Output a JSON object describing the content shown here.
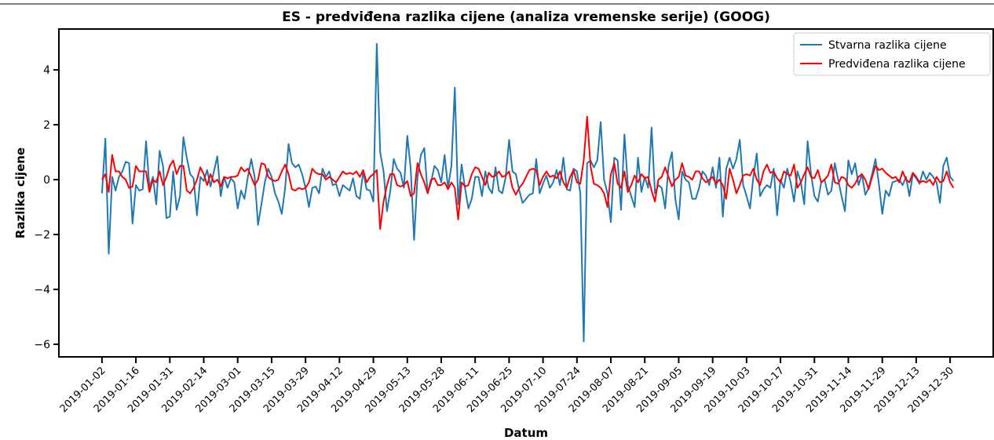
{
  "chart_data": {
    "type": "line",
    "title": "ES - predviđena razlika cijene (analiza vremenske serije) (GOOG)",
    "xlabel": "Datum",
    "ylabel": "Razlika cijene",
    "categories": [
      "2019-01-02",
      null,
      null,
      null,
      null,
      null,
      null,
      null,
      null,
      null,
      "2019-01-16",
      null,
      null,
      null,
      null,
      null,
      null,
      null,
      null,
      null,
      "2019-01-31",
      null,
      null,
      null,
      null,
      null,
      null,
      null,
      null,
      null,
      "2019-02-14",
      null,
      null,
      null,
      null,
      null,
      null,
      null,
      null,
      null,
      "2019-03-01",
      null,
      null,
      null,
      null,
      null,
      null,
      null,
      null,
      null,
      "2019-03-15",
      null,
      null,
      null,
      null,
      null,
      null,
      null,
      null,
      null,
      "2019-03-29",
      null,
      null,
      null,
      null,
      null,
      null,
      null,
      null,
      null,
      "2019-04-12",
      null,
      null,
      null,
      null,
      null,
      null,
      null,
      null,
      null,
      "2019-04-29",
      null,
      null,
      null,
      null,
      null,
      null,
      null,
      null,
      null,
      "2019-05-13",
      null,
      null,
      null,
      null,
      null,
      null,
      null,
      null,
      null,
      "2019-05-28",
      null,
      null,
      null,
      null,
      null,
      null,
      null,
      null,
      null,
      "2019-06-11",
      null,
      null,
      null,
      null,
      null,
      null,
      null,
      null,
      null,
      "2019-06-25",
      null,
      null,
      null,
      null,
      null,
      null,
      null,
      null,
      null,
      "2019-07-10",
      null,
      null,
      null,
      null,
      null,
      null,
      null,
      null,
      null,
      "2019-07-24",
      null,
      null,
      null,
      null,
      null,
      null,
      null,
      null,
      null,
      "2019-08-07",
      null,
      null,
      null,
      null,
      null,
      null,
      null,
      null,
      null,
      "2019-08-21",
      null,
      null,
      null,
      null,
      null,
      null,
      null,
      null,
      null,
      "2019-09-05",
      null,
      null,
      null,
      null,
      null,
      null,
      null,
      null,
      null,
      "2019-09-19",
      null,
      null,
      null,
      null,
      null,
      null,
      null,
      null,
      null,
      "2019-10-03",
      null,
      null,
      null,
      null,
      null,
      null,
      null,
      null,
      null,
      "2019-10-17",
      null,
      null,
      null,
      null,
      null,
      null,
      null,
      null,
      null,
      "2019-10-31",
      null,
      null,
      null,
      null,
      null,
      null,
      null,
      null,
      null,
      "2019-11-14",
      null,
      null,
      null,
      null,
      null,
      null,
      null,
      null,
      null,
      "2019-11-29",
      null,
      null,
      null,
      null,
      null,
      null,
      null,
      null,
      null,
      "2019-12-13",
      null,
      null,
      null,
      null,
      null,
      null,
      null,
      null,
      null,
      "2019-12-30",
      null
    ],
    "series": [
      {
        "name": "Stvarna razlika cijene",
        "color": "#1f77b4",
        "values": [
          -0.5,
          1.5,
          -2.7,
          0.1,
          -0.4,
          0.1,
          0.3,
          0.65,
          0.6,
          -1.6,
          -0.2,
          -0.4,
          -0.35,
          1.4,
          -0.3,
          0.1,
          -0.9,
          1.05,
          0.5,
          -1.4,
          -1.35,
          0.3,
          -1.1,
          -0.6,
          1.55,
          0.8,
          0.2,
          0.05,
          -1.3,
          0.1,
          -0.05,
          0.35,
          -0.25,
          0.3,
          0.85,
          -0.6,
          0.1,
          -0.3,
          0.05,
          -0.1,
          -1.05,
          -0.4,
          -0.7,
          0.1,
          0.75,
          0.1,
          -1.65,
          -0.9,
          -0.1,
          0.4,
          0.1,
          -0.5,
          -0.8,
          -1.25,
          -0.3,
          1.3,
          0.6,
          0.45,
          0.55,
          0.2,
          -0.3,
          -1.0,
          -0.3,
          -0.25,
          -0.5,
          0.4,
          0.1,
          0.3,
          -0.2,
          -0.15,
          -0.6,
          -0.2,
          -0.3,
          -0.4,
          0.05,
          -0.6,
          -0.7,
          0.3,
          -0.35,
          -0.4,
          -0.8,
          4.95,
          1.0,
          0.3,
          -1.15,
          -0.4,
          0.75,
          0.4,
          0.25,
          -0.3,
          1.6,
          0.4,
          -2.2,
          0.1,
          0.9,
          1.15,
          -0.5,
          -0.1,
          0.5,
          0.35,
          -0.1,
          0.9,
          -0.3,
          0.5,
          3.35,
          -0.9,
          0.55,
          -0.3,
          -1.05,
          -0.7,
          0.1,
          0.1,
          -0.6,
          0.3,
          -0.3,
          -0.5,
          0.45,
          -0.4,
          -0.5,
          0.1,
          1.45,
          0.3,
          0.2,
          -0.4,
          -0.85,
          -0.7,
          -0.55,
          -0.5,
          0.75,
          -0.5,
          -0.15,
          0.15,
          -0.3,
          -0.1,
          0.35,
          -0.2,
          0.8,
          -0.35,
          -0.4,
          0.4,
          0.3,
          -0.5,
          -5.9,
          0.6,
          0.7,
          0.45,
          0.7,
          2.1,
          0.0,
          -0.5,
          -1.55,
          0.8,
          0.7,
          -1.1,
          1.65,
          -0.2,
          -0.6,
          -1.0,
          0.8,
          -0.45,
          0.1,
          -0.3,
          1.9,
          -0.5,
          -0.2,
          -0.3,
          -1.05,
          0.5,
          1.0,
          -0.7,
          -1.45,
          0.3,
          0.0,
          -0.1,
          -0.7,
          -0.7,
          -0.3,
          0.3,
          0.15,
          -0.2,
          0.45,
          -0.3,
          0.8,
          -1.35,
          0.4,
          0.8,
          0.4,
          0.75,
          1.45,
          -0.2,
          -0.6,
          -1.05,
          0.1,
          0.95,
          -0.6,
          -0.35,
          -0.2,
          -0.3,
          0.4,
          -1.3,
          0.0,
          -0.3,
          0.4,
          -0.1,
          -0.8,
          0.3,
          -0.1,
          -0.9,
          1.4,
          0.2,
          -0.6,
          -0.8,
          -0.1,
          0.0,
          -0.55,
          -0.4,
          0.6,
          0.0,
          -0.6,
          -1.15,
          0.7,
          0.2,
          0.6,
          -0.2,
          0.2,
          -0.55,
          -0.3,
          0.2,
          0.75,
          -0.15,
          -1.25,
          -0.4,
          -0.6,
          -0.1,
          -0.05,
          0.0,
          -0.2,
          0.1,
          -0.6,
          0.2,
          0.05,
          -0.15,
          0.3,
          0.0,
          0.25,
          0.1,
          -0.1,
          -0.85,
          0.5,
          0.8,
          0.1,
          -0.05
        ]
      },
      {
        "name": "Predviđena razlika cijene",
        "color": "#ff0000",
        "values": [
          0.0,
          0.2,
          -0.45,
          0.9,
          0.3,
          0.3,
          0.1,
          0.0,
          -0.3,
          -0.25,
          0.5,
          0.3,
          0.3,
          0.3,
          -0.45,
          0.0,
          -0.1,
          0.3,
          -0.2,
          0.1,
          0.5,
          0.7,
          0.2,
          0.5,
          0.5,
          -0.4,
          -0.5,
          -0.3,
          0.0,
          0.45,
          0.2,
          -0.2,
          0.2,
          -0.1,
          0.0,
          -0.25,
          0.1,
          0.05,
          0.1,
          0.1,
          0.15,
          0.45,
          0.3,
          0.4,
          0.1,
          -0.2,
          0.0,
          0.6,
          0.55,
          0.1,
          0.0,
          -0.05,
          0.0,
          0.3,
          0.55,
          0.2,
          -0.35,
          -0.4,
          -0.3,
          -0.35,
          -0.3,
          -0.1,
          0.4,
          0.25,
          0.2,
          0.2,
          0.0,
          0.1,
          0.0,
          -0.1,
          0.1,
          0.3,
          0.2,
          0.25,
          0.2,
          0.3,
          0.1,
          0.35,
          -0.1,
          0.1,
          0.2,
          0.35,
          -1.8,
          -0.8,
          -0.2,
          0.2,
          0.2,
          -0.2,
          -0.25,
          -0.2,
          -0.05,
          -0.6,
          -0.5,
          0.6,
          0.2,
          -0.1,
          -0.5,
          0.0,
          0.05,
          -0.2,
          -0.2,
          -0.1,
          -0.35,
          -0.1,
          -0.3,
          -1.45,
          -0.1,
          -0.25,
          -0.2,
          0.2,
          0.45,
          0.4,
          0.1,
          -0.2,
          0.25,
          0.1,
          0.15,
          0.3,
          0.1,
          0.15,
          0.3,
          -0.3,
          -0.55,
          -0.3,
          -0.15,
          0.1,
          0.35,
          0.4,
          0.35,
          -0.2,
          0.1,
          0.3,
          0.1,
          0.15,
          0.05,
          0.3,
          -0.1,
          -0.3,
          0.1,
          0.35,
          -0.1,
          -0.15,
          0.7,
          2.3,
          0.5,
          -0.15,
          -0.2,
          -0.3,
          -0.5,
          -1.0,
          0.2,
          0.6,
          -0.15,
          -0.3,
          0.3,
          -0.45,
          -0.2,
          0.15,
          -0.1,
          0.2,
          0.05,
          0.1,
          -0.4,
          -0.8,
          0.0,
          0.1,
          0.45,
          0.1,
          -0.25,
          0.0,
          0.1,
          0.6,
          0.15,
          0.1,
          0.0,
          0.3,
          0.3,
          0.05,
          -0.1,
          0.0,
          0.1,
          -0.15,
          0.0,
          -0.2,
          -0.7,
          0.4,
          0.0,
          -0.5,
          -0.2,
          0.15,
          0.2,
          0.15,
          0.4,
          0.0,
          -0.2,
          0.3,
          0.55,
          0.25,
          0.3,
          0.05,
          -0.1,
          0.3,
          0.2,
          0.15,
          0.55,
          -0.3,
          -0.1,
          0.2,
          0.45,
          0.1,
          0.05,
          0.35,
          -0.1,
          0.0,
          0.15,
          0.55,
          -0.1,
          -0.15,
          0.1,
          0.05,
          -0.2,
          -0.3,
          -0.15,
          0.1,
          0.2,
          0.0,
          -0.35,
          0.1,
          0.5,
          0.35,
          0.4,
          0.25,
          0.15,
          0.05,
          0.1,
          -0.1,
          0.3,
          0.0,
          -0.1,
          0.25,
          0.1,
          -0.1,
          -0.05,
          -0.1,
          0.0,
          -0.2,
          0.1,
          -0.1,
          -0.05,
          0.3,
          -0.1,
          -0.3
        ]
      }
    ],
    "xlim": [
      -12.7,
      262.7
    ],
    "ylim": [
      -6.46,
      5.49
    ],
    "yticks": [
      {
        "value": -6,
        "label": "−6"
      },
      {
        "value": -4,
        "label": "−4"
      },
      {
        "value": -2,
        "label": "−2"
      },
      0,
      2,
      4
    ],
    "legend": "upper right"
  }
}
